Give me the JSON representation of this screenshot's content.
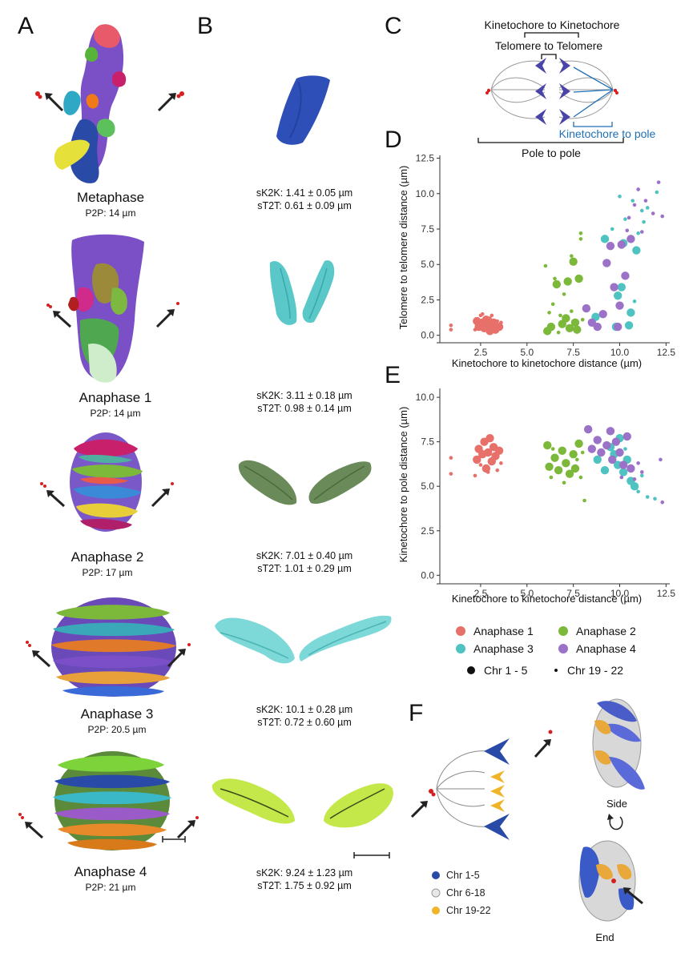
{
  "panels": {
    "A": "A",
    "B": "B",
    "C": "C",
    "D": "D",
    "E": "E",
    "F": "F"
  },
  "stages": [
    {
      "name": "Metaphase",
      "p2p": "P2P: 14 µm",
      "sk2k": "sK2K: 1.41 ± 0.05 µm",
      "st2t": "sT2T: 0.61 ± 0.09 µm"
    },
    {
      "name": "Anaphase 1",
      "p2p": "P2P: 14 µm",
      "sk2k": "sK2K: 3.11 ± 0.18 µm",
      "st2t": "sT2T: 0.98 ± 0.14 µm"
    },
    {
      "name": "Anaphase 2",
      "p2p": "P2P: 17 µm",
      "sk2k": "sK2K: 7.01 ± 0.40 µm",
      "st2t": "sT2T: 1.01 ± 0.29 µm"
    },
    {
      "name": "Anaphase 3",
      "p2p": "P2P: 20.5 µm",
      "sk2k": "sK2K: 10.1 ± 0.28 µm",
      "st2t": "sT2T: 0.72 ± 0.60 µm"
    },
    {
      "name": "Anaphase 4",
      "p2p": "P2P: 21 µm",
      "sk2k": "sK2K: 9.24 ± 1.23 µm",
      "st2t": "sT2T: 1.75 ± 0.92 µm"
    }
  ],
  "schematic_c": {
    "k2k": "Kinetochore to Kinetochore",
    "t2t": "Telomere to Telomere",
    "k2p": "Kinetochore to pole",
    "p2p": "Pole to pole"
  },
  "colors": {
    "anaphase1": "#e8706a",
    "anaphase2": "#7cb83a",
    "anaphase3": "#4fc2c2",
    "anaphase4": "#9b72c8",
    "chr1_5": "#2a4aa8",
    "chr6_18": "#e8e8e8",
    "chr19_22": "#f0b429",
    "schematic_blue": "#1f6fb5"
  },
  "legend": {
    "series": [
      "Anaphase 1",
      "Anaphase 2",
      "Anaphase 3",
      "Anaphase 4"
    ],
    "sizes": [
      "Chr 1 - 5",
      "Chr 19 - 22"
    ]
  },
  "panel_f": {
    "side": "Side",
    "end": "End",
    "legend": [
      "Chr 1-5",
      "Chr 6-18",
      "Chr 19-22"
    ]
  },
  "chart_data": [
    {
      "type": "scatter",
      "panel": "D",
      "xlabel": "Kinetochore to kinetochore distance (µm)",
      "ylabel": "Telomere to telomere distance (µm)",
      "xlim": [
        0.3,
        12.7
      ],
      "ylim": [
        -0.3,
        12.7
      ],
      "xticks": [
        2.5,
        5.0,
        7.5,
        10.0,
        12.5
      ],
      "yticks": [
        0.0,
        2.5,
        5.0,
        7.5,
        10.0,
        12.5
      ],
      "grid": false,
      "series": [
        {
          "name": "Anaphase 1",
          "color": "#e8706a",
          "points": [
            [
              0.9,
              0.7,
              0
            ],
            [
              0.9,
              0.4,
              0
            ],
            [
              2.3,
              1.0,
              1
            ],
            [
              2.4,
              0.6,
              1
            ],
            [
              2.5,
              1.4,
              0
            ],
            [
              2.6,
              0.9,
              1
            ],
            [
              2.7,
              0.5,
              1
            ],
            [
              2.8,
              1.1,
              1
            ],
            [
              2.9,
              0.8,
              1
            ],
            [
              3.0,
              0.3,
              1
            ],
            [
              3.0,
              1.2,
              0
            ],
            [
              3.1,
              0.7,
              1
            ],
            [
              3.2,
              0.9,
              1
            ],
            [
              3.3,
              0.4,
              1
            ],
            [
              3.4,
              1.0,
              0
            ],
            [
              3.5,
              0.6,
              1
            ],
            [
              2.6,
              1.5,
              0
            ],
            [
              3.1,
              1.4,
              0
            ],
            [
              2.2,
              0.4,
              0
            ],
            [
              3.6,
              0.9,
              0
            ]
          ]
        },
        {
          "name": "Anaphase 2",
          "color": "#7cb83a",
          "points": [
            [
              6.0,
              4.9,
              0
            ],
            [
              6.1,
              0.3,
              1
            ],
            [
              6.3,
              0.6,
              1
            ],
            [
              6.5,
              4.0,
              0
            ],
            [
              6.6,
              3.6,
              1
            ],
            [
              6.8,
              1.4,
              0
            ],
            [
              6.9,
              0.8,
              1
            ],
            [
              7.0,
              2.9,
              0
            ],
            [
              7.1,
              1.2,
              1
            ],
            [
              7.2,
              3.8,
              1
            ],
            [
              7.3,
              0.5,
              1
            ],
            [
              7.4,
              5.6,
              0
            ],
            [
              7.5,
              5.2,
              1
            ],
            [
              7.6,
              0.9,
              1
            ],
            [
              7.7,
              0.4,
              1
            ],
            [
              7.8,
              4.0,
              1
            ],
            [
              7.9,
              6.8,
              0
            ],
            [
              8.0,
              1.1,
              0
            ],
            [
              6.4,
              2.2,
              0
            ],
            [
              6.7,
              0.2,
              0
            ],
            [
              7.4,
              1.7,
              0
            ],
            [
              7.9,
              7.2,
              0
            ],
            [
              6.2,
              1.6,
              0
            ]
          ]
        },
        {
          "name": "Anaphase 3",
          "color": "#4fc2c2",
          "points": [
            [
              8.7,
              1.3,
              1
            ],
            [
              9.2,
              6.8,
              1
            ],
            [
              9.6,
              7.5,
              0
            ],
            [
              9.8,
              0.6,
              1
            ],
            [
              9.9,
              2.8,
              1
            ],
            [
              10.1,
              3.4,
              1
            ],
            [
              10.2,
              6.5,
              1
            ],
            [
              10.3,
              8.2,
              0
            ],
            [
              10.5,
              0.7,
              1
            ],
            [
              10.6,
              1.6,
              1
            ],
            [
              10.7,
              9.5,
              0
            ],
            [
              10.8,
              2.4,
              0
            ],
            [
              11.0,
              7.2,
              0
            ],
            [
              11.2,
              8.8,
              0
            ],
            [
              11.5,
              9.0,
              0
            ],
            [
              12.0,
              10.1,
              0
            ],
            [
              10.0,
              9.8,
              0
            ],
            [
              10.9,
              6.0,
              1
            ],
            [
              11.3,
              8.0,
              0
            ]
          ]
        },
        {
          "name": "Anaphase 4",
          "color": "#9b72c8",
          "points": [
            [
              8.2,
              1.9,
              1
            ],
            [
              8.5,
              0.9,
              1
            ],
            [
              8.8,
              0.6,
              1
            ],
            [
              9.1,
              1.5,
              1
            ],
            [
              9.3,
              5.1,
              1
            ],
            [
              9.5,
              6.3,
              1
            ],
            [
              9.7,
              3.4,
              1
            ],
            [
              9.9,
              0.6,
              1
            ],
            [
              10.0,
              2.1,
              1
            ],
            [
              10.1,
              6.4,
              1
            ],
            [
              10.3,
              4.2,
              1
            ],
            [
              10.4,
              7.4,
              0
            ],
            [
              10.6,
              6.8,
              1
            ],
            [
              10.8,
              9.2,
              0
            ],
            [
              11.0,
              10.3,
              0
            ],
            [
              11.2,
              7.3,
              0
            ],
            [
              11.4,
              9.5,
              0
            ],
            [
              11.8,
              8.6,
              0
            ],
            [
              12.1,
              10.8,
              0
            ],
            [
              12.3,
              8.4,
              0
            ],
            [
              10.5,
              8.3,
              0
            ]
          ]
        }
      ]
    },
    {
      "type": "scatter",
      "panel": "E",
      "xlabel": "Kinetochore to kinetochore distance (µm)",
      "ylabel": "Kinetochore to pole distance (µm)",
      "xlim": [
        0.3,
        12.7
      ],
      "ylim": [
        -0.3,
        10.5
      ],
      "xticks": [
        2.5,
        5.0,
        7.5,
        10.0,
        12.5
      ],
      "yticks": [
        0.0,
        2.5,
        5.0,
        7.5,
        10.0
      ],
      "grid": false,
      "series": [
        {
          "name": "Anaphase 1",
          "color": "#e8706a",
          "points": [
            [
              0.9,
              6.6,
              0
            ],
            [
              0.9,
              5.7,
              0
            ],
            [
              2.3,
              6.5,
              1
            ],
            [
              2.4,
              7.1,
              1
            ],
            [
              2.5,
              6.2,
              0
            ],
            [
              2.6,
              6.8,
              1
            ],
            [
              2.7,
              7.5,
              1
            ],
            [
              2.8,
              6.0,
              1
            ],
            [
              2.9,
              6.9,
              1
            ],
            [
              3.0,
              7.7,
              1
            ],
            [
              3.1,
              6.4,
              1
            ],
            [
              3.2,
              7.2,
              1
            ],
            [
              3.3,
              6.7,
              1
            ],
            [
              3.4,
              5.9,
              0
            ],
            [
              3.5,
              7.0,
              1
            ],
            [
              2.2,
              5.6,
              0
            ],
            [
              3.6,
              6.3,
              0
            ],
            [
              2.9,
              5.8,
              0
            ]
          ]
        },
        {
          "name": "Anaphase 2",
          "color": "#7cb83a",
          "points": [
            [
              6.1,
              7.3,
              1
            ],
            [
              6.2,
              6.1,
              1
            ],
            [
              6.3,
              5.5,
              0
            ],
            [
              6.5,
              6.6,
              1
            ],
            [
              6.7,
              5.9,
              1
            ],
            [
              6.9,
              7.0,
              1
            ],
            [
              7.1,
              6.3,
              1
            ],
            [
              7.3,
              5.7,
              1
            ],
            [
              7.5,
              6.8,
              1
            ],
            [
              7.6,
              6.0,
              1
            ],
            [
              7.8,
              7.4,
              1
            ],
            [
              7.9,
              5.5,
              0
            ],
            [
              8.1,
              4.2,
              0
            ],
            [
              6.4,
              7.1,
              0
            ],
            [
              7.0,
              5.2,
              0
            ],
            [
              7.7,
              6.5,
              0
            ],
            [
              8.0,
              6.9,
              0
            ]
          ]
        },
        {
          "name": "Anaphase 3",
          "color": "#4fc2c2",
          "points": [
            [
              8.8,
              6.5,
              1
            ],
            [
              9.2,
              5.9,
              1
            ],
            [
              9.5,
              7.2,
              1
            ],
            [
              9.7,
              6.8,
              1
            ],
            [
              9.9,
              6.2,
              1
            ],
            [
              10.0,
              7.7,
              1
            ],
            [
              10.2,
              5.8,
              1
            ],
            [
              10.4,
              6.5,
              1
            ],
            [
              10.6,
              5.3,
              1
            ],
            [
              10.8,
              5.0,
              1
            ],
            [
              11.0,
              4.7,
              0
            ],
            [
              11.2,
              5.6,
              0
            ],
            [
              11.5,
              4.4,
              0
            ],
            [
              11.9,
              4.3,
              0
            ],
            [
              10.3,
              7.1,
              0
            ],
            [
              10.9,
              4.9,
              0
            ]
          ]
        },
        {
          "name": "Anaphase 4",
          "color": "#9b72c8",
          "points": [
            [
              8.3,
              8.2,
              1
            ],
            [
              8.5,
              7.1,
              1
            ],
            [
              8.8,
              7.6,
              1
            ],
            [
              9.0,
              6.9,
              1
            ],
            [
              9.3,
              7.3,
              1
            ],
            [
              9.5,
              8.1,
              1
            ],
            [
              9.6,
              6.5,
              1
            ],
            [
              9.8,
              7.5,
              1
            ],
            [
              10.0,
              6.9,
              1
            ],
            [
              10.2,
              6.2,
              1
            ],
            [
              10.4,
              7.8,
              1
            ],
            [
              10.6,
              6.0,
              1
            ],
            [
              10.8,
              5.4,
              0
            ],
            [
              11.0,
              6.3,
              0
            ],
            [
              11.2,
              5.8,
              0
            ],
            [
              12.2,
              6.5,
              0
            ],
            [
              12.3,
              4.1,
              0
            ],
            [
              10.1,
              5.5,
              0
            ]
          ]
        }
      ]
    }
  ]
}
